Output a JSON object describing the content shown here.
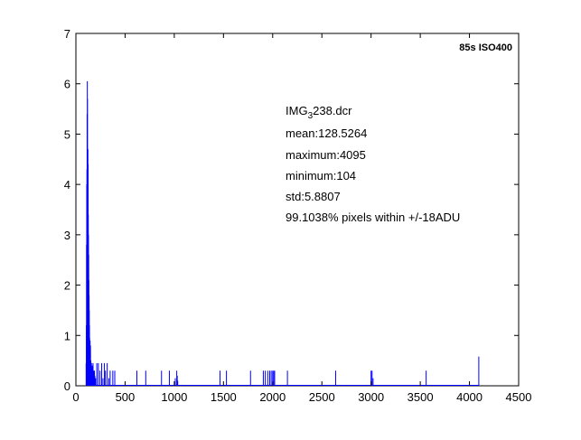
{
  "chart_data": {
    "type": "bar",
    "title": "",
    "xlabel": "",
    "ylabel": "",
    "xlim": [
      0,
      4500
    ],
    "ylim": [
      0,
      7
    ],
    "xticks": [
      0,
      500,
      1000,
      1500,
      2000,
      2500,
      3000,
      3500,
      4000,
      4500
    ],
    "yticks": [
      0,
      1,
      2,
      3,
      4,
      5,
      6,
      7
    ],
    "series_color": "#0000ff",
    "corner_label": "85s ISO400",
    "annotation": {
      "filename_prefix": "IMG",
      "filename_subscript": "3",
      "filename_suffix": "238.dcr",
      "mean": "mean:128.5264",
      "maximum": "maximum:4095",
      "minimum": "minimum:104",
      "std": "std:5.8807",
      "within": "99.1038% pixels within +/-18ADU"
    },
    "peak": {
      "x": [
        104,
        106,
        108,
        110,
        112,
        114,
        116,
        118,
        120,
        122,
        124,
        126,
        128,
        130,
        132,
        134,
        136,
        138,
        140,
        142,
        144,
        146,
        148,
        150,
        152,
        154,
        156,
        158,
        160,
        162,
        164,
        166,
        168,
        170,
        172,
        174,
        176,
        178,
        180,
        182,
        184,
        186,
        188,
        190,
        192,
        194,
        196,
        198,
        200
      ],
      "y": [
        0.45,
        1.2,
        2.8,
        4.0,
        4.3,
        5.4,
        6.05,
        5.7,
        4.6,
        4.7,
        4.4,
        3.4,
        3.0,
        2.6,
        2.1,
        1.8,
        1.5,
        1.2,
        0.95,
        0.85,
        0.9,
        0.6,
        0.8,
        0.45,
        0.5,
        0.35,
        0.3,
        0.45,
        0.25,
        0.15,
        0.35,
        0.15,
        0.4,
        0.2,
        0.12,
        0.45,
        0.1,
        0.15,
        0.3,
        0.1,
        0.2,
        0.1,
        0.3,
        0.1,
        0.2,
        0.05,
        0.15,
        0.1,
        0.15
      ]
    },
    "spikes": {
      "x": [
        212,
        228,
        245,
        262,
        275,
        290,
        300,
        318,
        335,
        348,
        375,
        395,
        620,
        710,
        870,
        950,
        1010,
        1025,
        1030,
        1035,
        1465,
        1530,
        1775,
        1905,
        1925,
        1950,
        1970,
        1985,
        2000,
        2010,
        2020,
        2150,
        2640,
        3000,
        3010,
        3020,
        3560,
        4095
      ],
      "y": [
        0.45,
        0.45,
        0.3,
        0.45,
        0.15,
        0.45,
        0.3,
        0.45,
        0.15,
        0.3,
        0.3,
        0.3,
        0.3,
        0.3,
        0.3,
        0.3,
        0.15,
        0.3,
        0.2,
        0.1,
        0.3,
        0.3,
        0.3,
        0.3,
        0.3,
        0.3,
        0.3,
        0.3,
        0.3,
        0.3,
        0.3,
        0.3,
        0.3,
        0.3,
        0.3,
        0.15,
        0.3,
        0.58
      ]
    }
  }
}
